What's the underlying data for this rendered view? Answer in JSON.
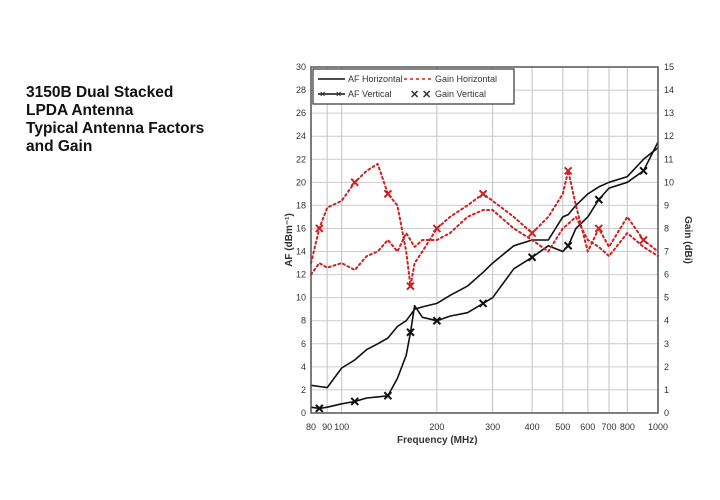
{
  "chart_data": {
    "type": "line",
    "title_lines": [
      "3150B Dual Stacked",
      "LPDA Antenna",
      "Typical Antenna Factors",
      "and Gain"
    ],
    "xlabel": "Frequency (MHz)",
    "ylabel": "AF (dBm⁻¹)",
    "y2label": "Gain (dBi)",
    "xscale": "log",
    "xlim": [
      80,
      1000
    ],
    "ylim": [
      0,
      30
    ],
    "y2lim": [
      0,
      15
    ],
    "xticks": [
      80,
      90,
      100,
      200,
      300,
      400,
      500,
      600,
      700,
      800,
      1000
    ],
    "yticks": [
      0,
      2,
      4,
      6,
      8,
      10,
      12,
      14,
      16,
      18,
      20,
      22,
      24,
      26,
      28,
      30
    ],
    "y2ticks": [
      0,
      1,
      2,
      3,
      4,
      5,
      6,
      7,
      8,
      9,
      10,
      11,
      12,
      13,
      14,
      15
    ],
    "grid": true,
    "legend_position": "top-left",
    "x": [
      80,
      85,
      90,
      100,
      110,
      120,
      130,
      140,
      150,
      160,
      165,
      170,
      180,
      200,
      220,
      250,
      280,
      300,
      350,
      400,
      450,
      500,
      520,
      550,
      600,
      650,
      700,
      800,
      900,
      1000
    ],
    "series": [
      {
        "name": "AF Horizontal",
        "axis": "left",
        "color": "#111111",
        "style": "solid",
        "markers": false,
        "values": [
          2.4,
          2.3,
          2.2,
          3.9,
          4.6,
          5.5,
          6.0,
          6.5,
          7.5,
          8.0,
          8.5,
          9.0,
          9.2,
          9.5,
          10.2,
          11.0,
          12.2,
          13.0,
          14.5,
          15.0,
          15.0,
          17.0,
          17.2,
          18.0,
          19.0,
          19.6,
          20.0,
          20.5,
          22.0,
          23.0
        ]
      },
      {
        "name": "AF Vertical",
        "axis": "left",
        "color": "#111111",
        "style": "solid",
        "markers": true,
        "values": [
          0.5,
          0.4,
          0.5,
          0.8,
          1.0,
          1.3,
          1.4,
          1.5,
          3.0,
          5.0,
          7.0,
          9.3,
          8.3,
          8.0,
          8.4,
          8.7,
          9.5,
          10.0,
          12.5,
          13.5,
          14.5,
          14.0,
          14.5,
          16.0,
          17.0,
          18.5,
          19.5,
          20.0,
          21.0,
          23.5
        ]
      },
      {
        "name": "Gain Horizontal",
        "axis": "right",
        "color": "#cc2222",
        "style": "dotted",
        "markers": false,
        "values": [
          6.0,
          6.5,
          6.3,
          6.5,
          6.2,
          6.8,
          7.0,
          7.5,
          7.0,
          7.8,
          7.5,
          7.2,
          7.5,
          7.5,
          7.8,
          8.5,
          8.8,
          8.8,
          8.0,
          7.5,
          7.0,
          8.0,
          8.2,
          8.5,
          7.5,
          7.2,
          6.8,
          7.8,
          7.2,
          6.8
        ]
      },
      {
        "name": "Gain Vertical",
        "axis": "right",
        "color": "#cc2222",
        "style": "dotted",
        "markers": true,
        "values": [
          6.5,
          8.0,
          8.9,
          9.2,
          10.0,
          10.5,
          10.8,
          9.5,
          9.0,
          7.0,
          5.5,
          6.5,
          7.0,
          8.0,
          8.5,
          9.0,
          9.5,
          9.2,
          8.5,
          7.8,
          8.5,
          9.5,
          10.5,
          9.0,
          7.0,
          8.0,
          7.2,
          8.5,
          7.5,
          7.0
        ]
      }
    ]
  }
}
